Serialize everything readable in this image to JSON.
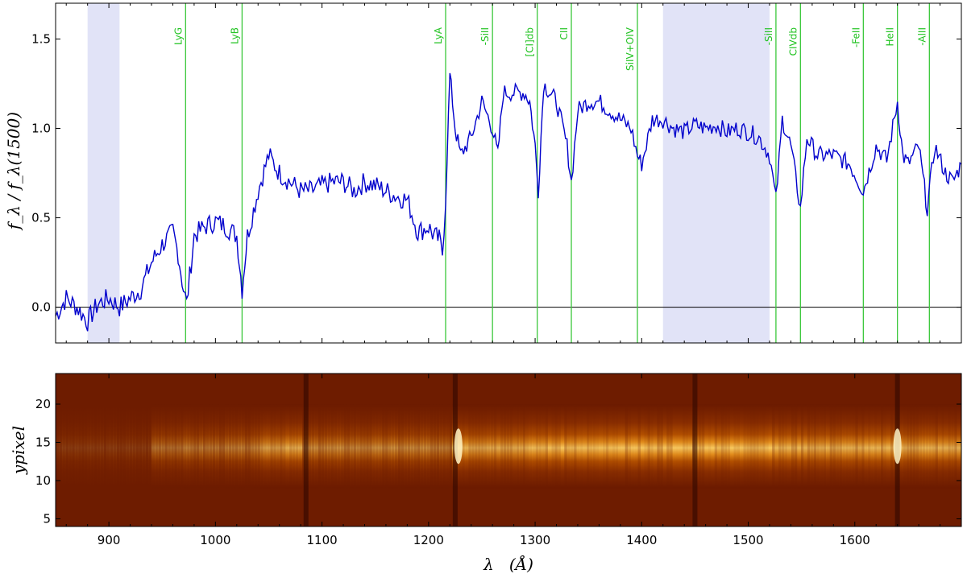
{
  "chart_data": [
    {
      "type": "line",
      "panel": "spectrum",
      "ylabel": "f_λ / f_λ(1500)",
      "xlim": [
        850,
        1700
      ],
      "ylim": [
        -0.2,
        1.7
      ],
      "yticks": [
        0.0,
        0.5,
        1.0,
        1.5
      ],
      "ytick_labels": [
        "0.0",
        "0.5",
        "1.0",
        "1.5"
      ],
      "xticks": [
        900,
        1000,
        1100,
        1200,
        1300,
        1400,
        1500,
        1600
      ],
      "zero_line": 0,
      "grid": false,
      "line_color": "#0000cc",
      "shade_color": "#e1e3f7",
      "line_color_marks": "#3cc83c",
      "shaded_regions": [
        [
          880,
          910
        ],
        [
          1420,
          1520
        ]
      ],
      "spectral_lines": [
        {
          "label": "LyG",
          "x": 972
        },
        {
          "label": "LyB",
          "x": 1025
        },
        {
          "label": "LyA",
          "x": 1216
        },
        {
          "label": "-SiII",
          "x": 1260
        },
        {
          "label": "[CI]db",
          "x": 1302
        },
        {
          "label": "CII",
          "x": 1334
        },
        {
          "label": "SiIV+OIV",
          "x": 1396
        },
        {
          "label": "-SiII",
          "x": 1526
        },
        {
          "label": "CIVdb",
          "x": 1549
        },
        {
          "label": "-FeII",
          "x": 1608
        },
        {
          "label": "HeII",
          "x": 1640
        },
        {
          "label": "-AlII",
          "x": 1670
        }
      ],
      "series": [
        {
          "x": [
            850,
            860,
            870,
            880,
            890,
            900,
            910,
            920,
            930,
            940,
            950,
            960,
            965,
            970,
            973,
            980,
            990,
            1000,
            1010,
            1020,
            1025,
            1030,
            1040,
            1050,
            1060,
            1070,
            1080,
            1090,
            1100,
            1110,
            1120,
            1130,
            1140,
            1150,
            1160,
            1170,
            1180,
            1190,
            1200,
            1205,
            1210,
            1213,
            1216,
            1220,
            1225,
            1230,
            1240,
            1250,
            1260,
            1265,
            1270,
            1280,
            1290,
            1295,
            1300,
            1303,
            1308,
            1320,
            1330,
            1334,
            1340,
            1350,
            1360,
            1370,
            1380,
            1390,
            1396,
            1400,
            1410,
            1420,
            1430,
            1440,
            1450,
            1460,
            1470,
            1480,
            1490,
            1500,
            1510,
            1520,
            1526,
            1532,
            1540,
            1549,
            1555,
            1565,
            1580,
            1595,
            1608,
            1620,
            1630,
            1640,
            1645,
            1650,
            1660,
            1668,
            1675,
            1685,
            1692,
            1700
          ],
          "y": [
            -0.05,
            0.05,
            0.0,
            -0.08,
            0.02,
            0.05,
            0.0,
            0.05,
            0.1,
            0.25,
            0.35,
            0.42,
            0.3,
            0.1,
            0.02,
            0.4,
            0.45,
            0.48,
            0.45,
            0.4,
            0.1,
            0.4,
            0.65,
            0.85,
            0.75,
            0.7,
            0.65,
            0.65,
            0.68,
            0.7,
            0.7,
            0.65,
            0.7,
            0.68,
            0.65,
            0.62,
            0.6,
            0.42,
            0.45,
            0.4,
            0.38,
            0.3,
            0.6,
            1.3,
            1.0,
            0.85,
            0.95,
            1.15,
            1.0,
            0.85,
            1.2,
            1.2,
            1.2,
            1.15,
            0.9,
            0.65,
            1.25,
            1.15,
            0.9,
            0.7,
            1.1,
            1.15,
            1.15,
            1.1,
            1.05,
            1.0,
            0.85,
            0.8,
            1.05,
            1.05,
            1.0,
            0.98,
            1.02,
            1.0,
            1.02,
            0.98,
            1.0,
            0.98,
            0.95,
            0.85,
            0.6,
            1.05,
            0.9,
            0.55,
            0.95,
            0.85,
            0.85,
            0.8,
            0.65,
            0.9,
            0.82,
            1.15,
            0.85,
            0.8,
            0.9,
            0.55,
            0.9,
            0.75,
            0.7,
            0.8
          ]
        }
      ]
    },
    {
      "type": "heatmap",
      "panel": "2d-spectrum",
      "ylabel": "ypixel",
      "xlabel": "λ   (Å)",
      "xlim": [
        850,
        1700
      ],
      "ylim": [
        4,
        24
      ],
      "yticks": [
        5,
        10,
        15,
        20
      ],
      "ytick_labels": [
        "5",
        "10",
        "15",
        "20"
      ],
      "xticks": [
        900,
        1000,
        1100,
        1200,
        1300,
        1400,
        1500,
        1600
      ],
      "xtick_labels": [
        "900",
        "1000",
        "1100",
        "1200",
        "1300",
        "1400",
        "1500",
        "1600"
      ],
      "trace_center": 14.5,
      "colormap": "afmhot",
      "dark_columns": [
        1085,
        1225,
        1450,
        1640
      ],
      "bright_features": [
        1228,
        1640
      ]
    }
  ]
}
